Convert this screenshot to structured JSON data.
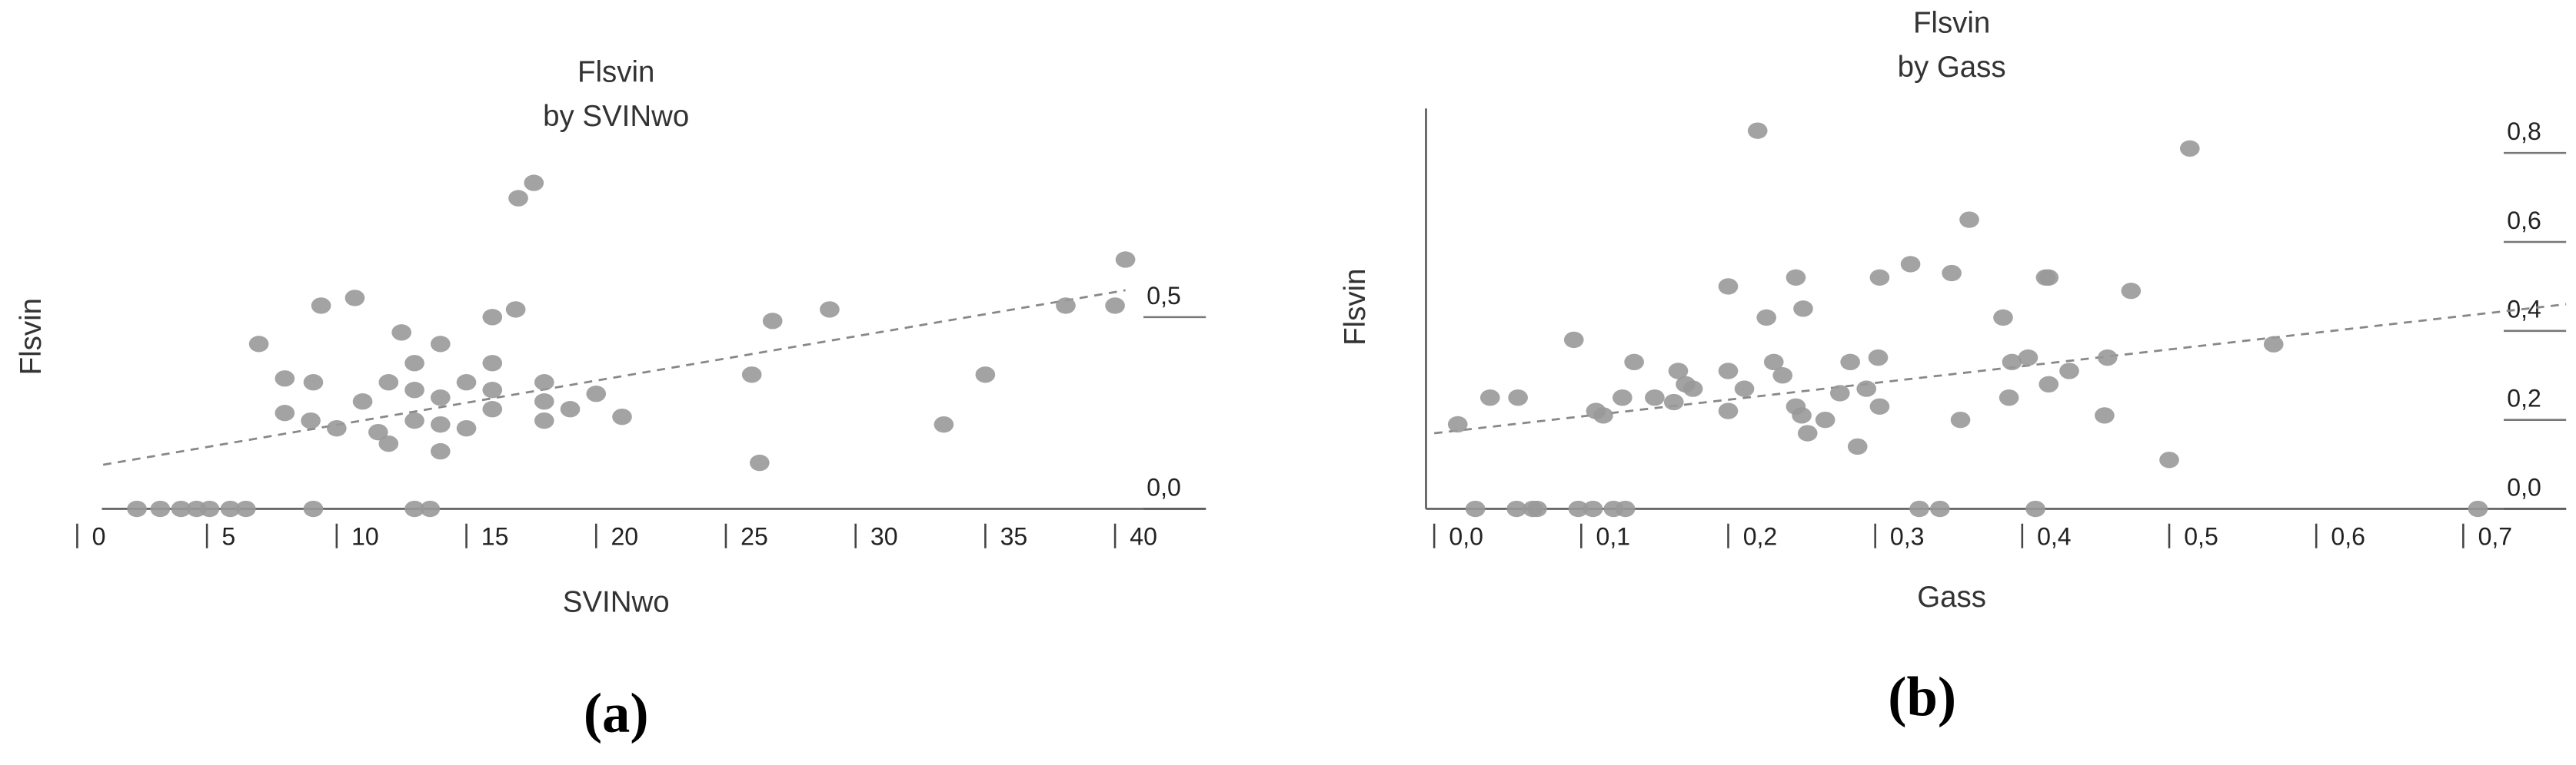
{
  "chart_data": [
    {
      "type": "scatter",
      "title": "Flsvin",
      "subtitle": "by SVINwo",
      "x_label": "SVINwo",
      "y_label": "Flsvin",
      "caption": "(a)",
      "color": "#999999",
      "xlim": [
        0,
        43.5
      ],
      "ylim": [
        0,
        0.92
      ],
      "xticks": [
        0,
        5,
        10,
        15,
        20,
        25,
        30,
        35,
        40
      ],
      "yticks": [
        {
          "value": 0,
          "label": "0,0"
        },
        {
          "value": 0.5,
          "label": "0,5"
        }
      ],
      "trendline": {
        "x": [
          1,
          40.4
        ],
        "y": [
          0.115,
          0.57
        ]
      },
      "x": [
        2.3,
        3.2,
        4.0,
        4.6,
        5.1,
        5.9,
        6.5,
        9.1,
        13,
        13.6,
        7.0,
        8.0,
        8.0,
        9.1,
        9.0,
        9.4,
        10,
        10.7,
        11,
        11.6,
        12,
        12,
        12.5,
        13,
        13,
        13,
        14,
        14,
        14,
        14,
        15,
        15,
        16,
        16,
        16,
        16,
        16.9,
        17,
        17.6,
        18,
        18,
        18,
        19,
        20,
        21,
        26,
        26.3,
        26.8,
        29,
        33.4,
        35,
        38.1,
        40,
        40.4
      ],
      "y": [
        0,
        0,
        0,
        0,
        0,
        0,
        0,
        0,
        0,
        0,
        0.43,
        0.34,
        0.25,
        0.33,
        0.23,
        0.53,
        0.21,
        0.55,
        0.28,
        0.2,
        0.17,
        0.33,
        0.46,
        0.31,
        0.38,
        0.23,
        0.43,
        0.22,
        0.15,
        0.29,
        0.21,
        0.33,
        0.26,
        0.5,
        0.38,
        0.31,
        0.52,
        0.81,
        0.85,
        0.33,
        0.28,
        0.23,
        0.26,
        0.3,
        0.24,
        0.35,
        0.12,
        0.49,
        0.52,
        0.22,
        0.35,
        0.53,
        0.53,
        0.65
      ]
    },
    {
      "type": "scatter",
      "title": "Flsvin",
      "subtitle": "by Gass",
      "x_label": "Gass",
      "y_label": "Flsvin",
      "caption": "(b)",
      "color": "#999999",
      "xlim": [
        0,
        0.77
      ],
      "ylim": [
        0,
        0.9
      ],
      "xticks": [
        {
          "value": 0,
          "label": "0,0"
        },
        {
          "value": 0.1,
          "label": "0,1"
        },
        {
          "value": 0.2,
          "label": "0,2"
        },
        {
          "value": 0.3,
          "label": "0,3"
        },
        {
          "value": 0.4,
          "label": "0,4"
        },
        {
          "value": 0.5,
          "label": "0,5"
        },
        {
          "value": 0.6,
          "label": "0,6"
        },
        {
          "value": 0.7,
          "label": "0,7"
        }
      ],
      "yticks": [
        {
          "value": 0,
          "label": "0,0"
        },
        {
          "value": 0.2,
          "label": "0,2"
        },
        {
          "value": 0.4,
          "label": "0,4"
        },
        {
          "value": 0.6,
          "label": "0,6"
        },
        {
          "value": 0.8,
          "label": "0,8"
        }
      ],
      "trendline": {
        "x": [
          0,
          0.77
        ],
        "y": [
          0.17,
          0.46
        ]
      },
      "x": [
        0.016,
        0.028,
        0.038,
        0.056,
        0.057,
        0.067,
        0.07,
        0.095,
        0.098,
        0.108,
        0.11,
        0.115,
        0.122,
        0.13,
        0.128,
        0.136,
        0.15,
        0.163,
        0.166,
        0.171,
        0.176,
        0.2,
        0.2,
        0.2,
        0.211,
        0.22,
        0.226,
        0.231,
        0.237,
        0.246,
        0.246,
        0.25,
        0.251,
        0.254,
        0.266,
        0.276,
        0.283,
        0.288,
        0.294,
        0.302,
        0.303,
        0.303,
        0.324,
        0.33,
        0.344,
        0.352,
        0.358,
        0.364,
        0.387,
        0.391,
        0.393,
        0.404,
        0.409,
        0.416,
        0.418,
        0.418,
        0.432,
        0.456,
        0.458,
        0.474,
        0.5,
        0.514,
        0.571,
        0.71
      ],
      "y": [
        0.19,
        0,
        0.25,
        0,
        0.25,
        0,
        0,
        0.38,
        0,
        0,
        0.22,
        0.21,
        0,
        0,
        0.25,
        0.33,
        0.25,
        0.24,
        0.31,
        0.28,
        0.27,
        0.5,
        0.31,
        0.22,
        0.27,
        0.85,
        0.43,
        0.33,
        0.3,
        0.52,
        0.23,
        0.21,
        0.45,
        0.17,
        0.2,
        0.26,
        0.33,
        0.14,
        0.27,
        0.34,
        0.52,
        0.23,
        0.55,
        0,
        0,
        0.53,
        0.2,
        0.65,
        0.43,
        0.25,
        0.33,
        0.34,
        0,
        0.52,
        0.52,
        0.28,
        0.31,
        0.21,
        0.34,
        0.49,
        0.11,
        0.81,
        0.37,
        0
      ]
    }
  ]
}
